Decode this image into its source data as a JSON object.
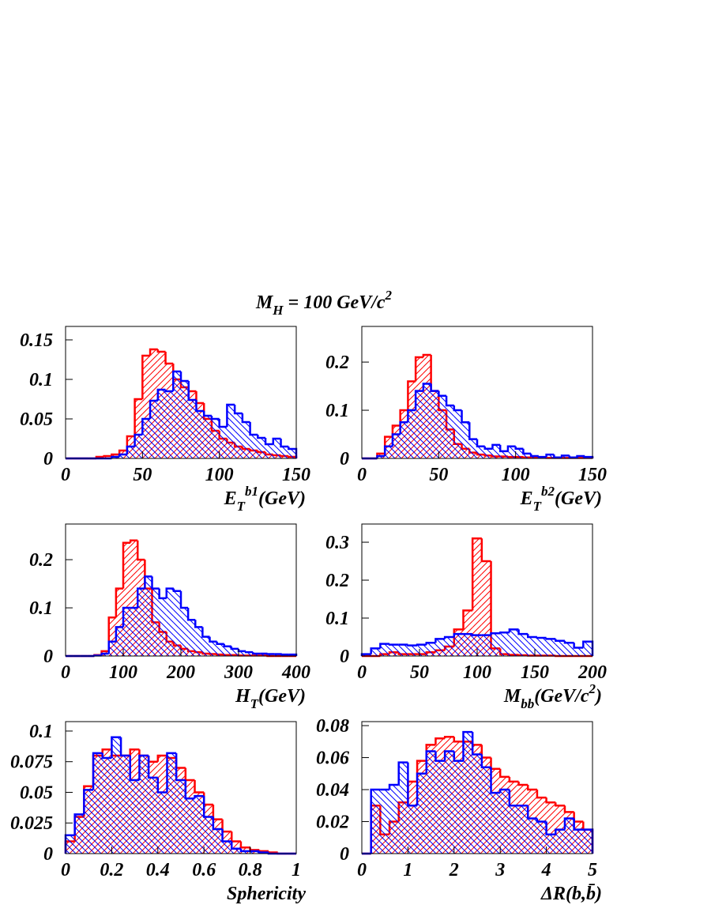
{
  "title_parts": [
    {
      "text": "M"
    },
    {
      "text": "H",
      "shift": "sub"
    },
    {
      "text": " = 100 GeV/c"
    },
    {
      "text": "2",
      "shift": "sup"
    }
  ],
  "chart_data": [
    {
      "type": "histogram",
      "xlabel_parts": [
        {
          "text": "E"
        },
        {
          "text": "T",
          "shift": "sub"
        },
        {
          "text": "b1",
          "shift": "sup"
        },
        {
          "text": "(GeV)"
        }
      ],
      "bins": [
        0,
        5,
        10,
        15,
        20,
        25,
        30,
        35,
        40,
        45,
        50,
        55,
        60,
        65,
        70,
        75,
        80,
        85,
        90,
        95,
        100,
        105,
        110,
        115,
        120,
        125,
        130,
        135,
        140,
        145,
        150
      ],
      "series": [
        {
          "color": "#ff0000",
          "values": [
            0,
            0,
            0,
            0,
            0.002,
            0.003,
            0.005,
            0.01,
            0.028,
            0.075,
            0.13,
            0.138,
            0.135,
            0.12,
            0.1,
            0.09,
            0.085,
            0.07,
            0.05,
            0.035,
            0.025,
            0.02,
            0.015,
            0.012,
            0.01,
            0.008,
            0.005,
            0.004,
            0.003,
            0.002
          ]
        },
        {
          "color": "#0000ff",
          "values": [
            0,
            0,
            0,
            0,
            0,
            0,
            0.002,
            0.005,
            0.015,
            0.03,
            0.05,
            0.073,
            0.087,
            0.085,
            0.11,
            0.098,
            0.074,
            0.06,
            0.054,
            0.05,
            0.04,
            0.068,
            0.057,
            0.046,
            0.03,
            0.026,
            0.018,
            0.025,
            0.015,
            0.012
          ]
        }
      ],
      "xlim": [
        0,
        150
      ],
      "ylim": [
        0,
        0.167
      ],
      "xticks": [
        0,
        50,
        100,
        150
      ],
      "yticks": [
        0,
        0.05,
        0.1,
        0.15
      ]
    },
    {
      "type": "histogram",
      "xlabel_parts": [
        {
          "text": "E"
        },
        {
          "text": "T",
          "shift": "sub"
        },
        {
          "text": "b2",
          "shift": "sup"
        },
        {
          "text": "(GeV)"
        }
      ],
      "bins": [
        0,
        5,
        10,
        15,
        20,
        25,
        30,
        35,
        40,
        45,
        50,
        55,
        60,
        65,
        70,
        75,
        80,
        85,
        90,
        95,
        100,
        105,
        110,
        115,
        120,
        125,
        130,
        135,
        140,
        145,
        150
      ],
      "series": [
        {
          "color": "#ff0000",
          "values": [
            0,
            0,
            0.01,
            0.045,
            0.068,
            0.1,
            0.16,
            0.21,
            0.215,
            0.14,
            0.1,
            0.06,
            0.03,
            0.02,
            0.012,
            0.008,
            0.006,
            0.004,
            0.004,
            0.003,
            0.003,
            0.002,
            0.002,
            0.002,
            0.001,
            0.001,
            0.001,
            0.001,
            0.001,
            0.001
          ]
        },
        {
          "color": "#0000ff",
          "values": [
            0,
            0,
            0.005,
            0.025,
            0.05,
            0.075,
            0.1,
            0.14,
            0.155,
            0.14,
            0.13,
            0.11,
            0.1,
            0.075,
            0.04,
            0.025,
            0.02,
            0.028,
            0.015,
            0.025,
            0.02,
            0.01,
            0.005,
            0.003,
            0.008,
            0.002,
            0.006,
            0.002,
            0.005,
            0.003
          ]
        }
      ],
      "xlim": [
        0,
        150
      ],
      "ylim": [
        0,
        0.274
      ],
      "xticks": [
        0,
        50,
        100,
        150
      ],
      "yticks": [
        0,
        0.1,
        0.2
      ]
    },
    {
      "type": "histogram",
      "xlabel_parts": [
        {
          "text": "H"
        },
        {
          "text": "T",
          "shift": "sub"
        },
        {
          "text": "(GeV)"
        }
      ],
      "bins": [
        0,
        12.5,
        25,
        37.5,
        50,
        62.5,
        75,
        87.5,
        100,
        112.5,
        125,
        137.5,
        150,
        162.5,
        175,
        187.5,
        200,
        212.5,
        225,
        237.5,
        250,
        262.5,
        275,
        287.5,
        300,
        312.5,
        325,
        337.5,
        350,
        362.5,
        375,
        387.5,
        400
      ],
      "series": [
        {
          "color": "#ff0000",
          "values": [
            0,
            0,
            0,
            0,
            0.002,
            0.01,
            0.08,
            0.14,
            0.235,
            0.24,
            0.2,
            0.14,
            0.07,
            0.05,
            0.03,
            0.022,
            0.015,
            0.01,
            0.008,
            0.005,
            0.004,
            0.003,
            0.002,
            0.002,
            0.001,
            0.001,
            0.001,
            0.001,
            0,
            0,
            0,
            0
          ]
        },
        {
          "color": "#0000ff",
          "values": [
            0,
            0,
            0,
            0,
            0.001,
            0.005,
            0.03,
            0.06,
            0.1,
            0.1,
            0.14,
            0.165,
            0.14,
            0.12,
            0.14,
            0.135,
            0.1,
            0.075,
            0.06,
            0.04,
            0.03,
            0.025,
            0.02,
            0.015,
            0.01,
            0.008,
            0.005,
            0.005,
            0.004,
            0.004,
            0.003,
            0.003
          ]
        }
      ],
      "xlim": [
        0,
        400
      ],
      "ylim": [
        0,
        0.274
      ],
      "xticks": [
        0,
        100,
        200,
        300,
        400
      ],
      "yticks": [
        0,
        0.1,
        0.2
      ]
    },
    {
      "type": "histogram",
      "xlabel_parts": [
        {
          "text": "M"
        },
        {
          "text": "bb",
          "shift": "sub"
        },
        {
          "text": "(GeV/c"
        },
        {
          "text": "2",
          "shift": "sup"
        },
        {
          "text": ")"
        }
      ],
      "bins": [
        0,
        8,
        16,
        24,
        32,
        40,
        48,
        56,
        64,
        72,
        80,
        88,
        96,
        104,
        112,
        120,
        128,
        136,
        144,
        152,
        160,
        168,
        176,
        184,
        192,
        200
      ],
      "series": [
        {
          "color": "#ff0000",
          "values": [
            0,
            0,
            0.005,
            0.01,
            0.005,
            0.005,
            0.005,
            0.01,
            0.015,
            0.025,
            0.07,
            0.12,
            0.31,
            0.25,
            0.02,
            0.005,
            0.003,
            0.002,
            0.001,
            0.001,
            0.001,
            0,
            0,
            0,
            0
          ]
        },
        {
          "color": "#0000ff",
          "values": [
            0.005,
            0.02,
            0.032,
            0.03,
            0.03,
            0.028,
            0.03,
            0.035,
            0.045,
            0.05,
            0.058,
            0.058,
            0.055,
            0.055,
            0.06,
            0.062,
            0.07,
            0.058,
            0.05,
            0.048,
            0.045,
            0.04,
            0.035,
            0.022,
            0.038
          ]
        }
      ],
      "xlim": [
        0,
        200
      ],
      "ylim": [
        0,
        0.348
      ],
      "xticks": [
        0,
        50,
        100,
        150,
        200
      ],
      "yticks": [
        0,
        0.1,
        0.2,
        0.3
      ]
    },
    {
      "type": "histogram",
      "xlabel_parts": [
        {
          "text": "Sphericity"
        }
      ],
      "bins": [
        0,
        0.04,
        0.08,
        0.12,
        0.16,
        0.2,
        0.24,
        0.28,
        0.32,
        0.36,
        0.4,
        0.44,
        0.48,
        0.52,
        0.56,
        0.6,
        0.64,
        0.68,
        0.72,
        0.76,
        0.8,
        0.84,
        0.88,
        0.92,
        0.96,
        1
      ],
      "series": [
        {
          "color": "#ff0000",
          "values": [
            0.01,
            0.03,
            0.055,
            0.08,
            0.085,
            0.08,
            0.08,
            0.085,
            0.08,
            0.075,
            0.08,
            0.078,
            0.07,
            0.06,
            0.05,
            0.04,
            0.028,
            0.018,
            0.01,
            0.005,
            0.003,
            0.002,
            0.001,
            0,
            0
          ]
        },
        {
          "color": "#0000ff",
          "values": [
            0.015,
            0.032,
            0.052,
            0.082,
            0.078,
            0.095,
            0.08,
            0.06,
            0.08,
            0.062,
            0.05,
            0.082,
            0.06,
            0.045,
            0.047,
            0.03,
            0.02,
            0.01,
            0.004,
            0.002,
            0.002,
            0.001,
            0,
            0,
            0
          ]
        }
      ],
      "xlim": [
        0,
        1
      ],
      "ylim": [
        0,
        0.1077
      ],
      "xticks": [
        0,
        0.2,
        0.4,
        0.6,
        0.8,
        1
      ],
      "yticks": [
        0,
        0.025,
        0.05,
        0.075,
        0.1
      ]
    },
    {
      "type": "histogram",
      "xlabel_parts": [
        {
          "text": "ΔR(b,b̄)"
        }
      ],
      "bins": [
        0,
        0.2,
        0.4,
        0.6,
        0.8,
        1,
        1.2,
        1.4,
        1.6,
        1.8,
        2,
        2.2,
        2.4,
        2.6,
        2.8,
        3,
        3.2,
        3.4,
        3.6,
        3.8,
        4,
        4.2,
        4.4,
        4.6,
        4.8,
        5
      ],
      "series": [
        {
          "color": "#ff0000",
          "values": [
            0,
            0.03,
            0.012,
            0.02,
            0.032,
            0.045,
            0.058,
            0.068,
            0.072,
            0.073,
            0.07,
            0.07,
            0.068,
            0.06,
            0.053,
            0.048,
            0.045,
            0.043,
            0.04,
            0.035,
            0.032,
            0.03,
            0.026,
            0.02,
            0.015
          ]
        },
        {
          "color": "#0000ff",
          "values": [
            0,
            0.04,
            0.04,
            0.043,
            0.057,
            0.03,
            0.05,
            0.064,
            0.058,
            0.064,
            0.058,
            0.076,
            0.062,
            0.054,
            0.038,
            0.04,
            0.03,
            0.03,
            0.022,
            0.02,
            0.012,
            0.015,
            0.022,
            0.015,
            0.015
          ]
        }
      ],
      "xlim": [
        0,
        5
      ],
      "ylim": [
        0,
        0.0825
      ],
      "xticks": [
        0,
        1,
        2,
        3,
        4,
        5
      ],
      "yticks": [
        0,
        0.02,
        0.04,
        0.06,
        0.08
      ]
    }
  ]
}
